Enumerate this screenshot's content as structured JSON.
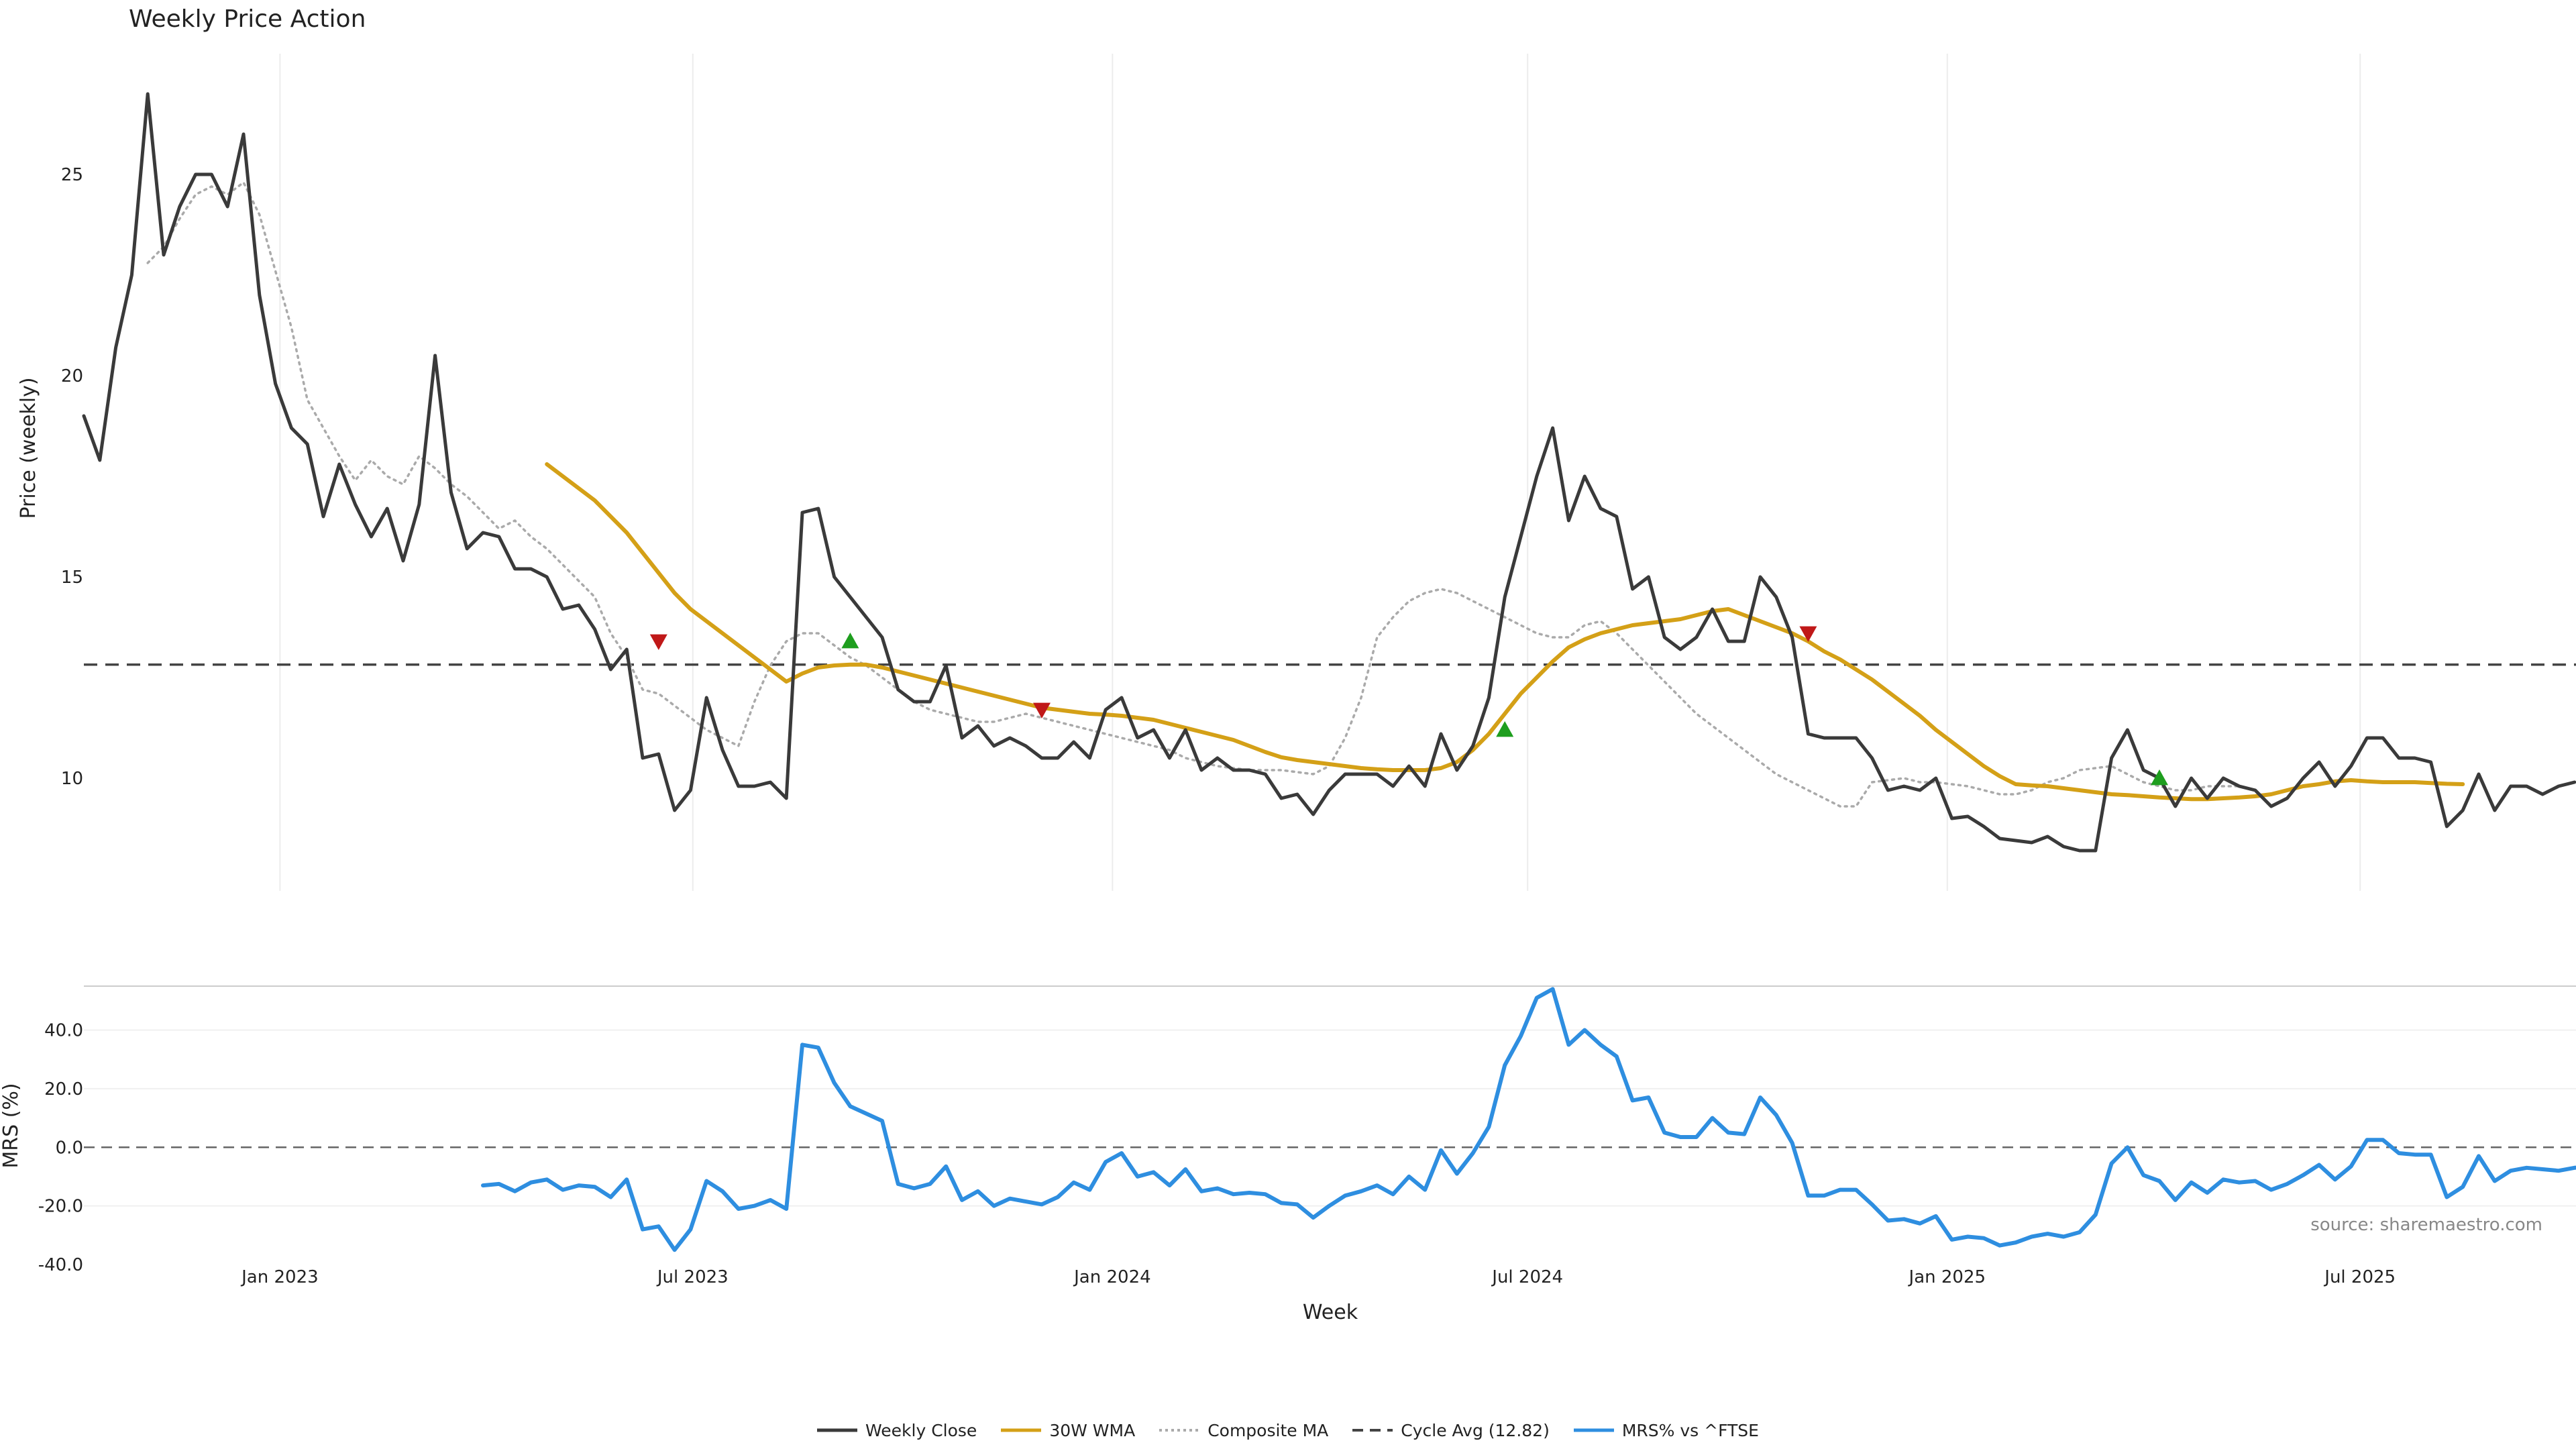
{
  "chart_data": [
    {
      "type": "line",
      "title": "Weekly Price Action",
      "ylabel": "Price (weekly)",
      "ylim": [
        7.2,
        28
      ],
      "yticks": [
        "10",
        "15",
        "20",
        "25"
      ],
      "xticks": [
        "Jan 2023",
        "Jul 2023",
        "Jan 2024",
        "Jul 2024",
        "Jan 2025",
        "Jul 2025"
      ],
      "start_date": "2022-10-07",
      "end_date": "2025-10-10",
      "cycle_avg": 12.82,
      "series": [
        {
          "name": "Weekly Close",
          "color": "#3a3a3a",
          "style": "solid",
          "values": [
            19,
            17.9,
            20.7,
            22.5,
            27,
            23,
            24.2,
            25,
            25,
            24.2,
            26,
            22,
            19.8,
            18.7,
            18.3,
            16.5,
            17.8,
            16.8,
            16,
            16.7,
            15.4,
            16.8,
            20.5,
            17.1,
            15.7,
            16.1,
            16,
            15.2,
            15.2,
            15,
            14.2,
            14.3,
            13.7,
            12.7,
            13.2,
            10.5,
            10.6,
            9.2,
            9.7,
            12,
            10.7,
            9.8,
            9.8,
            9.9,
            9.5,
            16.6,
            16.7,
            15,
            14.5,
            14,
            13.5,
            12.2,
            11.9,
            11.9,
            12.8,
            11,
            11.3,
            10.8,
            11,
            10.8,
            10.5,
            10.5,
            10.9,
            10.5,
            11.7,
            12,
            11,
            11.2,
            10.5,
            11.2,
            10.2,
            10.5,
            10.2,
            10.2,
            10.1,
            9.5,
            9.6,
            9.1,
            9.7,
            10.1,
            10.1,
            10.1,
            9.8,
            10.3,
            9.8,
            11.1,
            10.2,
            10.8,
            12,
            14.5,
            16,
            17.5,
            18.7,
            16.4,
            17.5,
            16.7,
            16.5,
            14.7,
            15,
            13.5,
            13.2,
            13.5,
            14.2,
            13.4,
            13.4,
            15,
            14.5,
            13.5,
            11.1,
            11,
            11,
            11,
            10.5,
            9.7,
            9.8,
            9.7,
            10,
            9,
            9.05,
            8.8,
            8.5,
            8.45,
            8.4,
            8.55,
            8.3,
            8.2,
            8.2,
            10.5,
            11.2,
            10.2,
            10,
            9.3,
            10,
            9.5,
            10,
            9.8,
            9.7,
            9.3,
            9.5,
            10,
            10.4,
            9.8,
            10.3,
            11,
            11,
            10.5,
            10.5,
            10.4,
            8.8,
            9.2,
            10.1,
            9.2,
            9.8,
            9.8,
            9.6,
            9.8,
            9.9
          ]
        },
        {
          "name": "30W WMA",
          "color": "#d4a017",
          "style": "solid",
          "start_index": 29,
          "values": [
            17.8,
            17.5,
            17.2,
            16.9,
            16.5,
            16.1,
            15.6,
            15.1,
            14.6,
            14.2,
            13.9,
            13.6,
            13.3,
            13,
            12.7,
            12.4,
            12.6,
            12.75,
            12.8,
            12.82,
            12.82,
            12.75,
            12.65,
            12.55,
            12.45,
            12.35,
            12.25,
            12.15,
            12.05,
            11.95,
            11.85,
            11.75,
            11.7,
            11.65,
            11.6,
            11.58,
            11.55,
            11.5,
            11.45,
            11.35,
            11.25,
            11.15,
            11.05,
            10.95,
            10.8,
            10.65,
            10.52,
            10.45,
            10.4,
            10.35,
            10.3,
            10.25,
            10.22,
            10.2,
            10.2,
            10.2,
            10.25,
            10.4,
            10.7,
            11.1,
            11.6,
            12.1,
            12.5,
            12.9,
            13.25,
            13.45,
            13.6,
            13.7,
            13.8,
            13.85,
            13.9,
            13.95,
            14.05,
            14.15,
            14.2,
            14.05,
            13.9,
            13.75,
            13.6,
            13.4,
            13.15,
            12.95,
            12.7,
            12.45,
            12.15,
            11.85,
            11.55,
            11.2,
            10.9,
            10.6,
            10.3,
            10.05,
            9.85,
            9.82,
            9.8,
            9.75,
            9.7,
            9.65,
            9.6,
            9.58,
            9.55,
            9.52,
            9.5,
            9.48,
            9.48,
            9.5,
            9.52,
            9.55,
            9.6,
            9.7,
            9.8,
            9.85,
            9.92,
            9.95,
            9.92,
            9.9,
            9.9,
            9.9,
            9.88,
            9.86,
            9.85
          ]
        },
        {
          "name": "Composite MA",
          "color": "#aaaaaa",
          "style": "dotted",
          "start_index": 4,
          "values": [
            22.8,
            23.2,
            23.9,
            24.5,
            24.7,
            24.5,
            24.8,
            24,
            22.6,
            21.2,
            19.4,
            18.7,
            18,
            17.4,
            17.9,
            17.5,
            17.3,
            18,
            17.7,
            17.3,
            17,
            16.6,
            16.2,
            16.4,
            16,
            15.7,
            15.3,
            14.9,
            14.5,
            13.6,
            13,
            12.2,
            12.1,
            11.8,
            11.5,
            11.2,
            11,
            10.8,
            11.9,
            12.8,
            13.4,
            13.6,
            13.6,
            13.3,
            13,
            12.8,
            12.5,
            12.2,
            11.9,
            11.7,
            11.6,
            11.5,
            11.4,
            11.4,
            11.5,
            11.6,
            11.5,
            11.4,
            11.3,
            11.2,
            11.1,
            11,
            10.9,
            10.8,
            10.7,
            10.5,
            10.4,
            10.3,
            10.25,
            10.2,
            10.2,
            10.2,
            10.15,
            10.1,
            10.3,
            11,
            12,
            13.5,
            14,
            14.4,
            14.6,
            14.7,
            14.6,
            14.4,
            14.2,
            14,
            13.8,
            13.6,
            13.5,
            13.5,
            13.8,
            13.9,
            13.6,
            13.2,
            12.8,
            12.4,
            12,
            11.6,
            11.3,
            11,
            10.7,
            10.4,
            10.1,
            9.9,
            9.7,
            9.5,
            9.3,
            9.3,
            9.9,
            9.95,
            10,
            9.9,
            9.9,
            9.85,
            9.8,
            9.7,
            9.6,
            9.6,
            9.7,
            9.9,
            10,
            10.2,
            10.25,
            10.3,
            10.1,
            9.9,
            9.8,
            9.7,
            9.7,
            9.8,
            9.8,
            9.8
          ]
        },
        {
          "name": "Cycle Avg (12.82)",
          "color": "#444444",
          "style": "dashed"
        }
      ],
      "signals": [
        {
          "type": "sell",
          "index": 36,
          "value": 13.4
        },
        {
          "type": "buy",
          "index": 48,
          "value": 13.4
        },
        {
          "type": "sell",
          "index": 60,
          "value": 11.7
        },
        {
          "type": "buy",
          "index": 89,
          "value": 11.2
        },
        {
          "type": "sell",
          "index": 108,
          "value": 13.6
        },
        {
          "type": "buy",
          "index": 130,
          "value": 10
        }
      ]
    },
    {
      "type": "line",
      "xlabel": "Week",
      "ylabel": "MRS (%)",
      "ylim": [
        -40,
        55
      ],
      "yticks": [
        "40.0",
        "20.0",
        "0.0",
        "-20.0",
        "-40.0"
      ],
      "series": [
        {
          "name": "MRS% vs ^FTSE",
          "color": "#2e8ee0",
          "style": "solid",
          "start_index": 25,
          "values": [
            -13,
            -12.5,
            -15,
            -12,
            -11,
            -14.5,
            -13,
            -13.5,
            -17,
            -11,
            -28,
            -27,
            -35,
            -28,
            -11.5,
            -15,
            -21,
            -20,
            -18,
            -21,
            35,
            34,
            22,
            14,
            11.5,
            9,
            -12.5,
            -14,
            -12.5,
            -6.5,
            -18,
            -15,
            -20,
            -17.5,
            -18.5,
            -19.5,
            -17,
            -12,
            -14.5,
            -5,
            -2,
            -10,
            -8.5,
            -13,
            -7.5,
            -15,
            -14,
            -16,
            -15.5,
            -16,
            -19,
            -19.5,
            -24,
            -20,
            -16.5,
            -15,
            -13,
            -16,
            -10,
            -14.5,
            -1,
            -9,
            -2,
            7,
            28,
            38,
            51,
            54,
            35,
            40,
            35,
            31,
            16,
            17,
            5,
            3.5,
            3.5,
            10,
            5,
            4.5,
            17,
            11,
            1.5,
            -16.5,
            -16.5,
            -14.5,
            -14.5,
            -19.5,
            -25,
            -24.5,
            -26,
            -23.5,
            -31.5,
            -30.5,
            -31,
            -33.5,
            -32.5,
            -30.5,
            -29.5,
            -30.5,
            -29,
            -23,
            -5.5,
            0,
            -9.5,
            -11.5,
            -18,
            -12,
            -15.5,
            -11,
            -12,
            -11.5,
            -14.5,
            -12.5,
            -9.5,
            -6,
            -11,
            -6.5,
            2.5,
            2.5,
            -2,
            -2.5,
            -2.5,
            -17,
            -13.5,
            -3,
            -11.5,
            -8,
            -7,
            -7.5,
            -8,
            -7,
            -6.5
          ]
        }
      ],
      "zero_line": 0,
      "annotation": "source: sharemaestro.com"
    }
  ],
  "legend": {
    "items": [
      {
        "label": "Weekly Close",
        "color": "#3a3a3a",
        "style": "solid"
      },
      {
        "label": "30W WMA",
        "color": "#d4a017",
        "style": "solid"
      },
      {
        "label": "Composite MA",
        "color": "#aaaaaa",
        "style": "dotted"
      },
      {
        "label": "Cycle Avg (12.82)",
        "color": "#444444",
        "style": "dashed"
      },
      {
        "label": "MRS% vs ^FTSE",
        "color": "#2e8ee0",
        "style": "solid"
      }
    ]
  },
  "signal_colors": {
    "buy": "#1e9e1e",
    "sell": "#c01818"
  }
}
